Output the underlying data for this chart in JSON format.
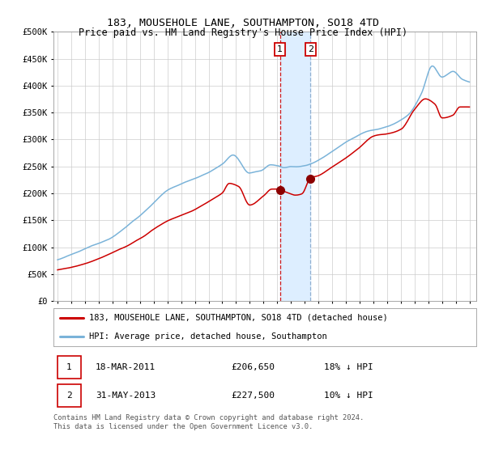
{
  "title": "183, MOUSEHOLE LANE, SOUTHAMPTON, SO18 4TD",
  "subtitle": "Price paid vs. HM Land Registry's House Price Index (HPI)",
  "hpi_label": "HPI: Average price, detached house, Southampton",
  "property_label": "183, MOUSEHOLE LANE, SOUTHAMPTON, SO18 4TD (detached house)",
  "footer_text": "Contains HM Land Registry data © Crown copyright and database right 2024.\nThis data is licensed under the Open Government Licence v3.0.",
  "transaction1_date": "18-MAR-2011",
  "transaction1_price": 206650,
  "transaction2_date": "31-MAY-2013",
  "transaction2_price": 227500,
  "transaction1_note": "18% ↓ HPI",
  "transaction2_note": "10% ↓ HPI",
  "hpi_color": "#7ab3d9",
  "property_color": "#cc0000",
  "dot_color": "#8b0000",
  "vline1_color": "#cc0000",
  "vline2_color": "#88aacc",
  "shade_color": "#ddeeff",
  "grid_color": "#cccccc",
  "bg_color": "#ffffff",
  "ylim": [
    0,
    500000
  ],
  "yticks": [
    0,
    50000,
    100000,
    150000,
    200000,
    250000,
    300000,
    350000,
    400000,
    450000,
    500000
  ],
  "xlim_start": 1994.7,
  "xlim_end": 2025.5,
  "transaction1_x": 2011.21,
  "transaction2_x": 2013.42
}
